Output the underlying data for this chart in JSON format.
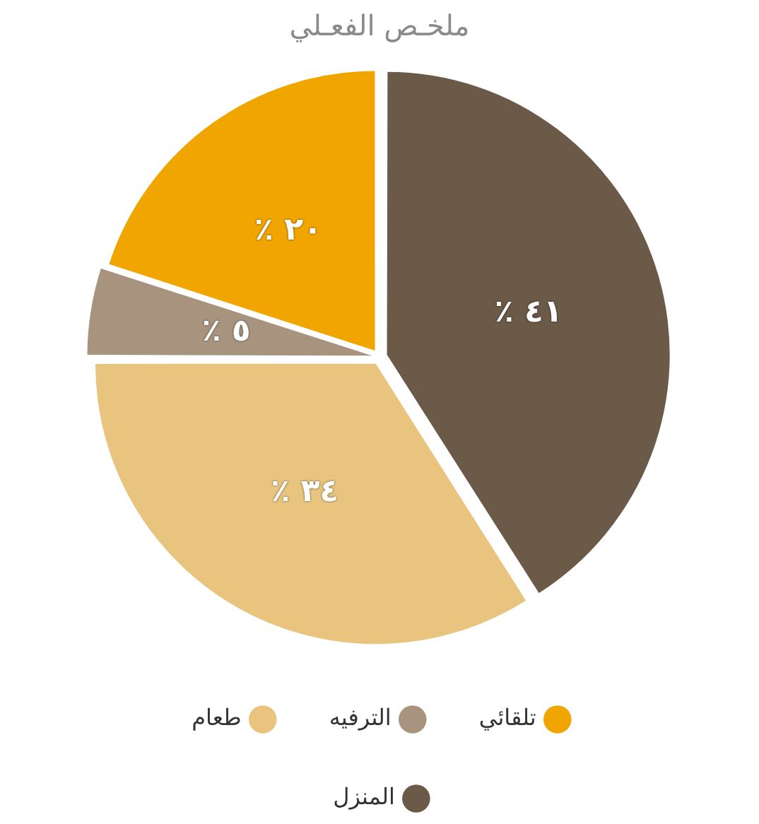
{
  "chart_data": {
    "type": "pie",
    "title": "ملخـص الفعـلي",
    "categories": [
      "المنزل",
      "طعام",
      "الترفيه",
      "تلقائي"
    ],
    "values": [
      41,
      34,
      5,
      20
    ],
    "colors": [
      "#6b5a48",
      "#e8c47f",
      "#a8947e",
      "#f0a500"
    ],
    "value_labels": [
      "٪ ٤١",
      "٪ ٣٤",
      "٪ ٥",
      "٪ ٢٠"
    ],
    "legend": "bottom"
  }
}
